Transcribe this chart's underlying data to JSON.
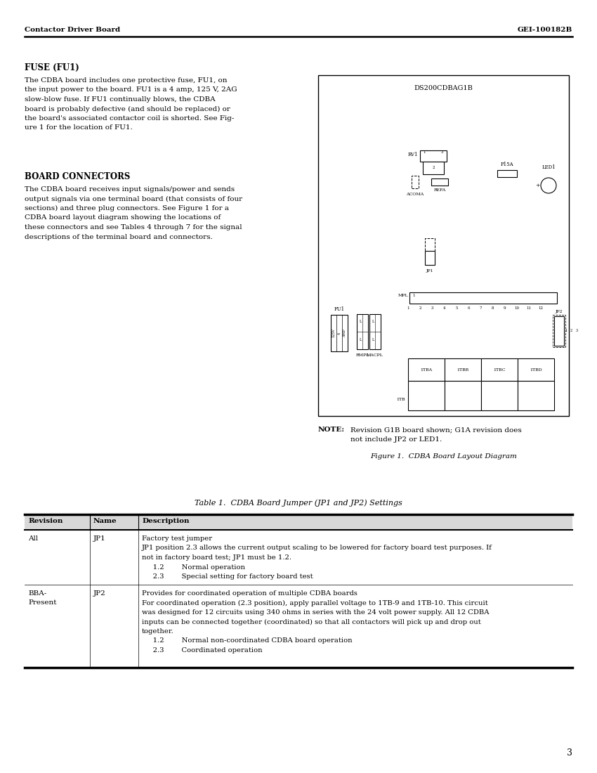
{
  "page_title_left": "Contactor Driver Board",
  "page_title_right": "GEI-100182B",
  "page_number": "3",
  "fuse_heading": "FUSE (FU1)",
  "fuse_body_lines": [
    "The CDBA board includes one protective fuse, FU1, on",
    "the input power to the board. FU1 is a 4 amp, 125 V, 2AG",
    "slow-blow fuse. If FU1 continually blows, the CDBA",
    "board is probably defective (and should be replaced) or",
    "the board's associated contactor coil is shorted. See Fig-",
    "ure 1 for the location of FU1."
  ],
  "connectors_heading": "BOARD CONNECTORS",
  "connectors_body_lines": [
    "The CDBA board receives input signals/power and sends",
    "output signals via one terminal board (that consists of four",
    "sections) and three plug connectors. See Figure 1 for a",
    "CDBA board layout diagram showing the locations of",
    "these connectors and see Tables 4 through 7 for the signal",
    "descriptions of the terminal board and connectors."
  ],
  "diagram_title": "DS200CDBAG1B",
  "figure_caption": "Figure 1.  CDBA Board Layout Diagram",
  "table_title": "Table 1.  CDBA Board Jumper (JP1 and JP2) Settings",
  "table_headers": [
    "Revision",
    "Name",
    "Description"
  ],
  "row1_revision": "All",
  "row1_name": "JP1",
  "row1_desc_lines": [
    "Factory test jumper",
    "JP1 position 2.3 allows the current output scaling to be lowered for factory board test purposes. If",
    "not in factory board test; JP1 must be 1.2.",
    "     1.2        Normal operation",
    "     2.3        Special setting for factory board test"
  ],
  "row2_revision_lines": [
    "BBA-",
    "Present"
  ],
  "row2_name": "JP2",
  "row2_desc_lines": [
    "Provides for coordinated operation of multiple CDBA boards",
    "For coordinated operation (2.3 position), apply parallel voltage to 1TB-9 and 1TB-10. This circuit",
    "was designed for 12 circuits using 340 ohms in series with the 24 volt power supply. All 12 CDBA",
    "inputs can be connected together (coordinated) so that all contactors will pick up and drop out",
    "together.",
    "     1.2        Normal non-coordinated CDBA board operation",
    "     2.3        Coordinated operation"
  ],
  "bg_color": "#ffffff",
  "note_bold": "NOTE:",
  "note_line1": "Revision G1B board shown; G1A revision does",
  "note_line2": "not include JP2 or LED1."
}
